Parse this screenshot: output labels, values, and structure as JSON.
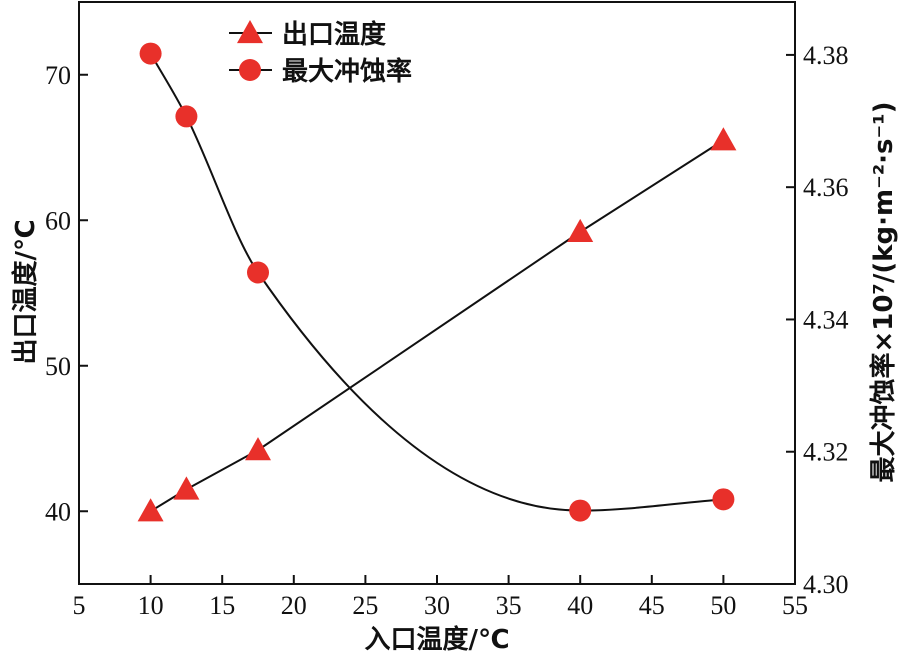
{
  "chart_data": {
    "type": "line",
    "xlabel": "入口温度/℃",
    "ylabel_left": "出口温度/℃",
    "ylabel_right": "最大冲蚀率×10⁷/(kg·m⁻²·s⁻¹)",
    "xlim": [
      5,
      55
    ],
    "ylim_left": [
      35,
      75
    ],
    "ylim_right": [
      4.3,
      4.388
    ],
    "x_ticks": [
      "5",
      "10",
      "15",
      "20",
      "25",
      "30",
      "35",
      "40",
      "45",
      "50",
      "55"
    ],
    "y_left_ticks": [
      "40",
      "50",
      "60",
      "70"
    ],
    "y_right_ticks": [
      "4.30",
      "4.32",
      "4.34",
      "4.36",
      "4.38"
    ],
    "grid": false,
    "legend_position": "top-left",
    "series": [
      {
        "name": "出口温度",
        "axis": "left",
        "marker": "triangle",
        "color": "#e8302a",
        "line": "straight",
        "points": [
          [
            10,
            40.0
          ],
          [
            12.5,
            41.5
          ],
          [
            17.5,
            44.2
          ],
          [
            40,
            59.2
          ],
          [
            50,
            65.5
          ]
        ]
      },
      {
        "name": "最大冲蚀率",
        "axis": "right",
        "marker": "circle",
        "color": "#e8302a",
        "line": "smooth",
        "points": [
          [
            10,
            4.3802
          ],
          [
            12.5,
            4.3707
          ],
          [
            17.5,
            4.3471
          ],
          [
            40,
            4.3111
          ],
          [
            50,
            4.3128
          ]
        ]
      }
    ]
  }
}
